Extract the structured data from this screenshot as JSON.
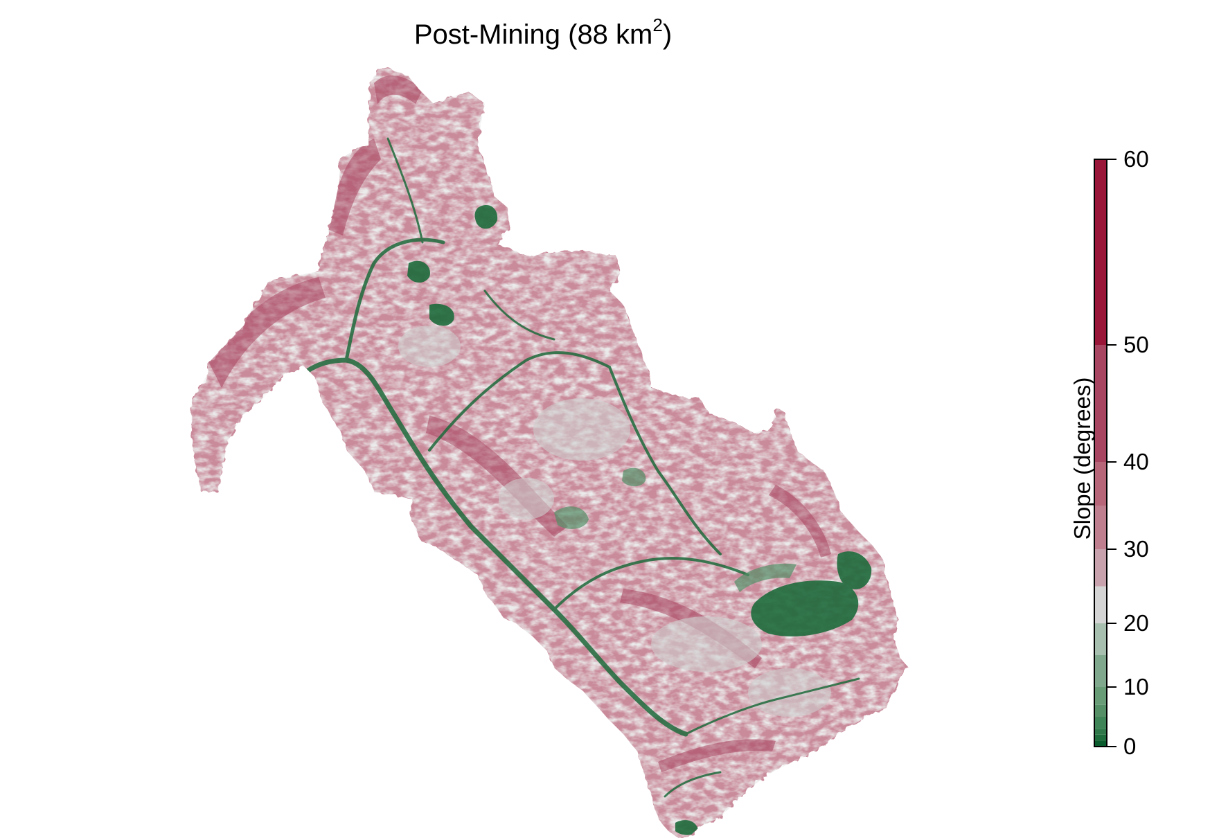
{
  "title": {
    "main": "Post-Mining (88 km",
    "superscript": "2",
    "closing": ")"
  },
  "legend": {
    "label": "Slope (degrees)",
    "min": 0,
    "max": 60,
    "ticks": [
      {
        "value": 0,
        "label": "0"
      },
      {
        "value": 10,
        "label": "10"
      },
      {
        "value": 20,
        "label": "20"
      },
      {
        "value": 30,
        "label": "30"
      },
      {
        "value": 40,
        "label": "40"
      },
      {
        "value": 50,
        "label": "50"
      },
      {
        "value": 60,
        "label": "60"
      }
    ],
    "bands": [
      {
        "from": 0,
        "to": 1,
        "color": "#0a5c2e"
      },
      {
        "from": 1,
        "to": 2,
        "color": "#1e6b3c"
      },
      {
        "from": 2,
        "to": 3,
        "color": "#2f7748"
      },
      {
        "from": 3,
        "to": 5,
        "color": "#3f8456"
      },
      {
        "from": 5,
        "to": 7,
        "color": "#548f66"
      },
      {
        "from": 7,
        "to": 10,
        "color": "#679c77"
      },
      {
        "from": 10,
        "to": 15,
        "color": "#7fa88d"
      },
      {
        "from": 15,
        "to": 20,
        "color": "#a7bfae"
      },
      {
        "from": 20,
        "to": 25,
        "color": "#d4d4d4"
      },
      {
        "from": 25,
        "to": 30,
        "color": "#c8a2ad"
      },
      {
        "from": 30,
        "to": 35,
        "color": "#c07f8f"
      },
      {
        "from": 35,
        "to": 40,
        "color": "#b7667a"
      },
      {
        "from": 40,
        "to": 50,
        "color": "#a84560"
      },
      {
        "from": 50,
        "to": 60,
        "color": "#9a1638"
      }
    ]
  },
  "map": {
    "dominant_color": "#c98a9a",
    "low_slope_color": "#1e6b3c",
    "mid_color": "#c9c9c9"
  }
}
